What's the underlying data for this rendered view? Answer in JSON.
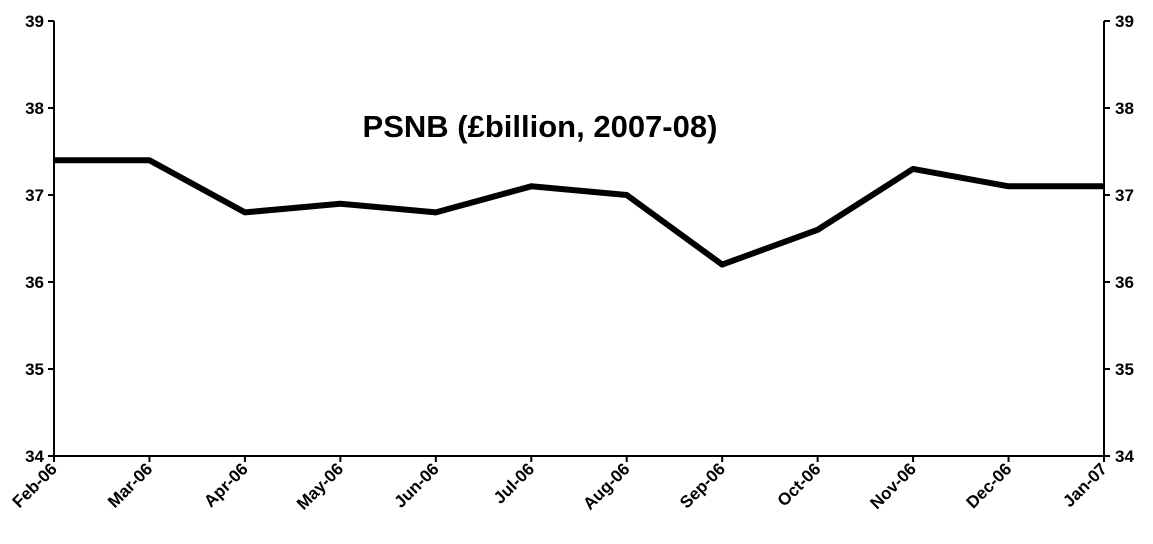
{
  "chart_data": {
    "type": "line",
    "title": "PSNB (£billion, 2007-08)",
    "xlabel": "",
    "ylabel": "",
    "categories": [
      "Feb-06",
      "Mar-06",
      "Apr-06",
      "May-06",
      "Jun-06",
      "Jul-06",
      "Aug-06",
      "Sep-06",
      "Oct-06",
      "Nov-06",
      "Dec-06",
      "Jan-07"
    ],
    "series": [
      {
        "values": [
          37.4,
          37.4,
          36.8,
          36.9,
          36.8,
          37.1,
          37.0,
          36.2,
          36.6,
          37.3,
          37.1,
          37.1
        ]
      }
    ],
    "ylim": [
      34,
      39
    ],
    "yticks": [
      "34",
      "35",
      "36",
      "37",
      "38",
      "39"
    ],
    "secondary_yticks": [
      "34",
      "35",
      "36",
      "37",
      "38",
      "39"
    ],
    "grid": false,
    "legend": "none",
    "line_color": "#000000"
  }
}
